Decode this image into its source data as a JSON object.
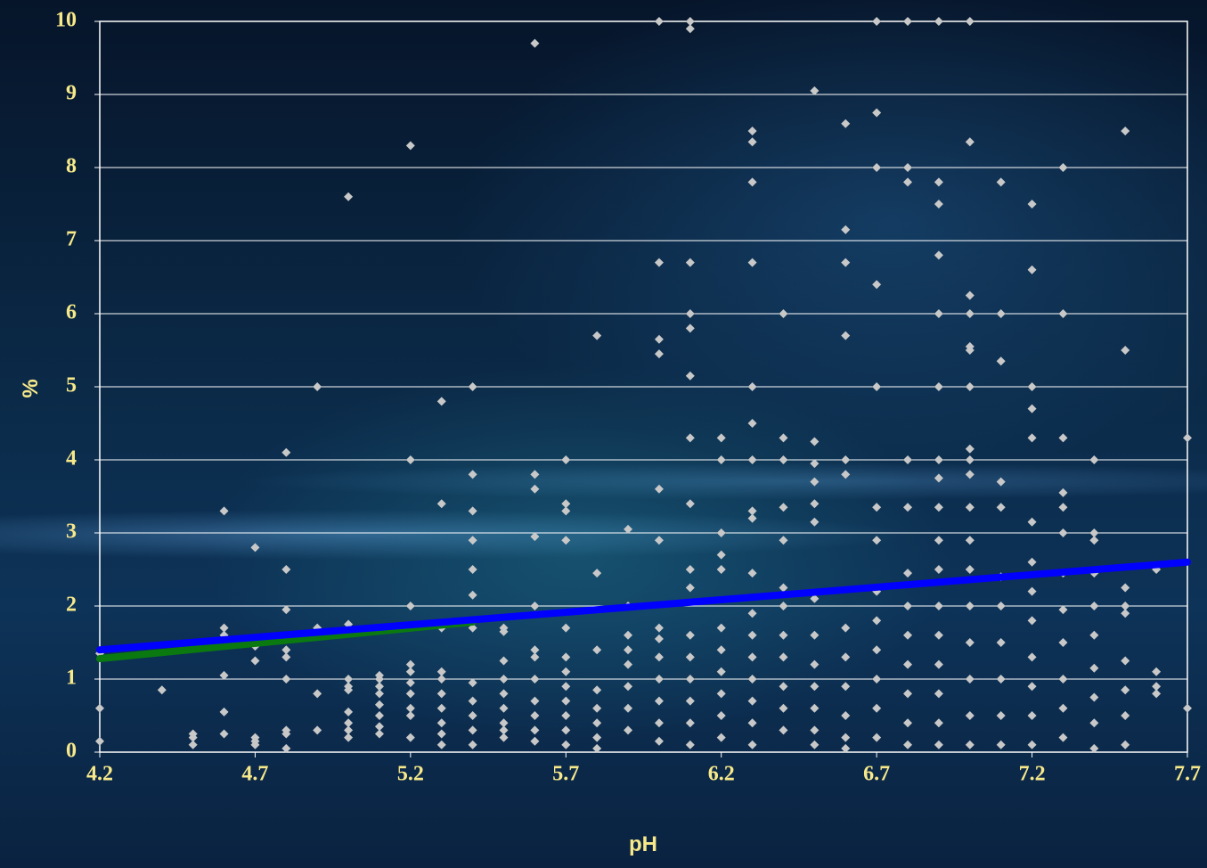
{
  "chart_data": {
    "type": "scatter",
    "xlabel": "pH",
    "ylabel": "%",
    "xlim": [
      4.2,
      7.7
    ],
    "xticks": [
      4.2,
      4.7,
      5.2,
      5.7,
      6.2,
      6.7,
      7.2,
      7.7
    ],
    "ylim": [
      0,
      10
    ],
    "yticks": [
      0,
      1,
      2,
      3,
      4,
      5,
      6,
      7,
      8,
      9,
      10
    ],
    "grid": true,
    "series": [
      {
        "type": "scatter",
        "color": "#c8c8c8",
        "x": [
          4.2,
          4.2,
          4.2,
          4.4,
          4.5,
          4.5,
          4.5,
          4.6,
          4.6,
          4.6,
          4.6,
          4.6,
          4.6,
          4.7,
          4.7,
          4.7,
          4.7,
          4.7,
          4.7,
          4.8,
          4.8,
          4.8,
          4.8,
          4.8,
          4.8,
          4.8,
          4.8,
          4.8,
          4.9,
          4.9,
          4.9,
          4.9,
          5.0,
          5.0,
          5.0,
          5.0,
          5.0,
          5.0,
          5.0,
          5.0,
          5.0,
          5.1,
          5.1,
          5.1,
          5.1,
          5.1,
          5.1,
          5.1,
          5.1,
          5.2,
          5.2,
          5.2,
          5.2,
          5.2,
          5.2,
          5.2,
          5.2,
          5.2,
          5.2,
          5.3,
          5.3,
          5.3,
          5.3,
          5.3,
          5.3,
          5.3,
          5.3,
          5.3,
          5.3,
          5.4,
          5.4,
          5.4,
          5.4,
          5.4,
          5.4,
          5.4,
          5.4,
          5.4,
          5.4,
          5.4,
          5.4,
          5.5,
          5.5,
          5.5,
          5.5,
          5.5,
          5.5,
          5.5,
          5.5,
          5.5,
          5.6,
          5.6,
          5.6,
          5.6,
          5.6,
          5.6,
          5.6,
          5.6,
          5.6,
          5.6,
          5.6,
          5.6,
          5.7,
          5.7,
          5.7,
          5.7,
          5.7,
          5.7,
          5.7,
          5.7,
          5.7,
          5.7,
          5.7,
          5.7,
          5.8,
          5.8,
          5.8,
          5.8,
          5.8,
          5.8,
          5.8,
          5.8,
          5.9,
          5.9,
          5.9,
          5.9,
          5.9,
          5.9,
          5.9,
          5.9,
          6.0,
          6.0,
          6.0,
          6.0,
          6.0,
          6.0,
          6.0,
          6.0,
          6.0,
          6.0,
          6.0,
          6.0,
          6.0,
          6.1,
          6.1,
          6.1,
          6.1,
          6.1,
          6.1,
          6.1,
          6.1,
          6.1,
          6.1,
          6.1,
          6.1,
          6.1,
          6.1,
          6.1,
          6.1,
          6.2,
          6.2,
          6.2,
          6.2,
          6.2,
          6.2,
          6.2,
          6.2,
          6.2,
          6.2,
          6.2,
          6.3,
          6.3,
          6.3,
          6.3,
          6.3,
          6.3,
          6.3,
          6.3,
          6.3,
          6.3,
          6.3,
          6.3,
          6.3,
          6.3,
          6.3,
          6.3,
          6.3,
          6.4,
          6.4,
          6.4,
          6.4,
          6.4,
          6.4,
          6.4,
          6.4,
          6.4,
          6.4,
          6.4,
          6.4,
          6.5,
          6.5,
          6.5,
          6.5,
          6.5,
          6.5,
          6.5,
          6.5,
          6.5,
          6.5,
          6.5,
          6.5,
          6.5,
          6.6,
          6.6,
          6.6,
          6.6,
          6.6,
          6.6,
          6.6,
          6.6,
          6.6,
          6.6,
          6.6,
          6.6,
          6.7,
          6.7,
          6.7,
          6.7,
          6.7,
          6.7,
          6.7,
          6.7,
          6.7,
          6.7,
          6.7,
          6.7,
          6.7,
          6.8,
          6.8,
          6.8,
          6.8,
          6.8,
          6.8,
          6.8,
          6.8,
          6.8,
          6.8,
          6.8,
          6.8,
          6.9,
          6.9,
          6.9,
          6.9,
          6.9,
          6.9,
          6.9,
          6.9,
          6.9,
          6.9,
          6.9,
          6.9,
          6.9,
          6.9,
          6.9,
          6.9,
          6.9,
          7.0,
          7.0,
          7.0,
          7.0,
          7.0,
          7.0,
          7.0,
          7.0,
          7.0,
          7.0,
          7.0,
          7.0,
          7.0,
          7.0,
          7.0,
          7.0,
          7.0,
          7.0,
          7.1,
          7.1,
          7.1,
          7.1,
          7.1,
          7.1,
          7.1,
          7.1,
          7.1,
          7.1,
          7.1,
          7.2,
          7.2,
          7.2,
          7.2,
          7.2,
          7.2,
          7.2,
          7.2,
          7.2,
          7.2,
          7.2,
          7.2,
          7.2,
          7.3,
          7.3,
          7.3,
          7.3,
          7.3,
          7.3,
          7.3,
          7.3,
          7.3,
          7.3,
          7.3,
          7.3,
          7.4,
          7.4,
          7.4,
          7.4,
          7.4,
          7.4,
          7.4,
          7.4,
          7.4,
          7.4,
          7.5,
          7.5,
          7.5,
          7.5,
          7.5,
          7.5,
          7.5,
          7.5,
          7.5,
          7.6,
          7.6,
          7.6,
          7.6,
          7.7,
          7.7
        ],
        "values": [
          1.35,
          0.6,
          0.15,
          0.85,
          0.25,
          0.1,
          0.2,
          3.3,
          1.7,
          1.6,
          1.05,
          0.55,
          0.25,
          2.8,
          1.45,
          1.25,
          0.2,
          0.15,
          0.1,
          4.1,
          2.5,
          1.95,
          1.4,
          1.3,
          1.0,
          0.3,
          0.25,
          0.05,
          5.0,
          1.7,
          0.8,
          0.3,
          7.6,
          1.75,
          1.0,
          0.9,
          0.85,
          0.55,
          0.4,
          0.3,
          0.2,
          1.05,
          1.0,
          0.9,
          0.8,
          0.65,
          0.5,
          0.35,
          0.25,
          8.3,
          4.0,
          2.0,
          1.2,
          1.1,
          0.95,
          0.8,
          0.6,
          0.5,
          0.2,
          4.8,
          3.4,
          1.7,
          1.1,
          1.0,
          0.8,
          0.6,
          0.4,
          0.25,
          0.1,
          5.0,
          3.8,
          3.3,
          2.9,
          2.5,
          2.15,
          1.7,
          0.95,
          0.7,
          0.5,
          0.3,
          0.1,
          1.7,
          1.65,
          1.25,
          1.0,
          0.8,
          0.6,
          0.4,
          0.3,
          0.2,
          9.7,
          3.8,
          3.6,
          2.95,
          2.0,
          1.4,
          1.3,
          1.0,
          0.7,
          0.5,
          0.3,
          0.15,
          4.0,
          3.4,
          3.3,
          2.9,
          1.7,
          1.3,
          1.1,
          0.9,
          0.7,
          0.5,
          0.3,
          0.1,
          5.7,
          2.45,
          1.4,
          0.85,
          0.6,
          0.4,
          0.2,
          0.05,
          3.05,
          2.0,
          1.6,
          1.4,
          1.2,
          0.9,
          0.6,
          0.3,
          10,
          6.7,
          5.65,
          5.45,
          3.6,
          2.9,
          1.7,
          1.55,
          1.3,
          1.0,
          0.7,
          0.4,
          0.15,
          10,
          9.9,
          6.7,
          6.0,
          5.8,
          5.15,
          4.3,
          3.4,
          2.5,
          2.25,
          1.6,
          1.3,
          1.0,
          0.7,
          0.4,
          0.1,
          4.3,
          4.0,
          3.0,
          2.7,
          2.5,
          1.7,
          1.4,
          1.1,
          0.8,
          0.5,
          0.2,
          8.5,
          8.35,
          7.8,
          6.7,
          5.0,
          4.5,
          4.0,
          3.3,
          3.2,
          2.45,
          1.9,
          1.6,
          1.3,
          1.0,
          0.7,
          0.4,
          0.1,
          6.0,
          4.3,
          4.0,
          3.35,
          2.9,
          2.25,
          2.0,
          1.6,
          1.3,
          0.9,
          0.6,
          0.3,
          9.05,
          4.25,
          3.95,
          3.7,
          3.4,
          3.15,
          2.1,
          1.6,
          1.2,
          0.9,
          0.6,
          0.3,
          0.1,
          8.6,
          7.15,
          6.7,
          5.7,
          4.0,
          3.8,
          1.7,
          1.3,
          0.9,
          0.5,
          0.2,
          0.05,
          10,
          8.75,
          8.0,
          6.4,
          5.0,
          3.35,
          2.9,
          2.2,
          1.8,
          1.4,
          1.0,
          0.6,
          0.2,
          10,
          8.0,
          7.8,
          4.0,
          3.35,
          2.45,
          2.0,
          1.6,
          1.2,
          0.8,
          0.4,
          0.1,
          10,
          7.8,
          7.5,
          6.8,
          6.0,
          5.0,
          4.0,
          3.75,
          3.35,
          2.9,
          2.5,
          2.0,
          1.6,
          1.2,
          0.8,
          0.4,
          0.1,
          10,
          8.35,
          6.25,
          6.0,
          5.55,
          5.5,
          5.0,
          4.15,
          4.0,
          3.8,
          3.35,
          2.9,
          2.5,
          2.0,
          1.5,
          1.0,
          0.5,
          0.1,
          7.8,
          6.0,
          5.35,
          3.7,
          3.35,
          2.4,
          2.0,
          1.5,
          1.0,
          0.5,
          0.1,
          7.5,
          6.6,
          5.0,
          4.7,
          4.3,
          3.15,
          2.6,
          2.2,
          1.8,
          1.3,
          0.9,
          0.5,
          0.1,
          8.0,
          6.0,
          4.3,
          3.55,
          3.35,
          3.0,
          2.45,
          1.95,
          1.5,
          1.0,
          0.6,
          0.2,
          4.0,
          3.0,
          2.9,
          2.45,
          2.0,
          1.6,
          1.15,
          0.75,
          0.4,
          0.05,
          8.5,
          5.5,
          2.25,
          2.0,
          1.9,
          1.25,
          0.85,
          0.5,
          0.1,
          2.5,
          1.1,
          0.9,
          0.8,
          4.3,
          0.6
        ]
      },
      {
        "type": "line",
        "color": "#0a7a10",
        "x": [
          4.2,
          5.4
        ],
        "values": [
          1.28,
          1.78
        ]
      },
      {
        "type": "line",
        "color": "#0000ff",
        "x": [
          4.2,
          7.7
        ],
        "values": [
          1.4,
          2.6
        ]
      }
    ]
  }
}
